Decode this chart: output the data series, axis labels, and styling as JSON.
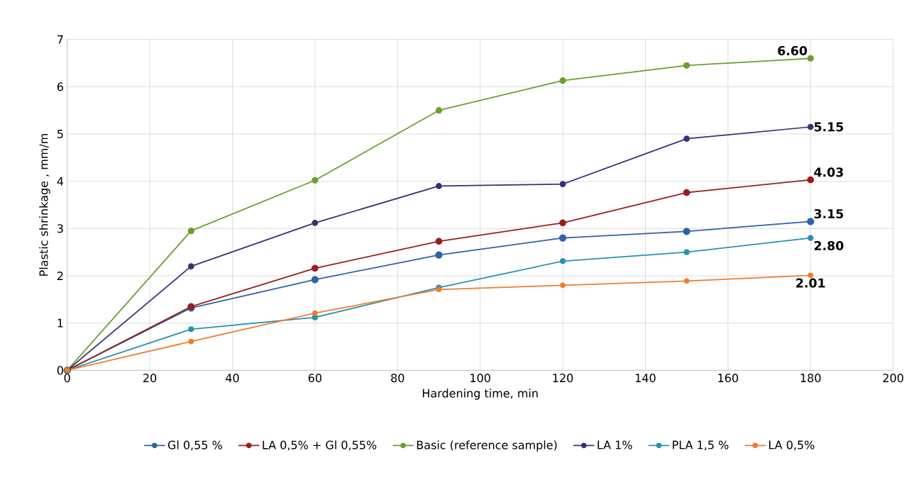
{
  "chart_data": {
    "type": "line",
    "xlabel": "Hardening time, min",
    "ylabel": "Plastic shrinkage , mm/m",
    "x": [
      0,
      30,
      60,
      90,
      120,
      150,
      180
    ],
    "xlim": [
      0,
      200
    ],
    "xticks": [
      0,
      20,
      40,
      60,
      80,
      100,
      120,
      140,
      160,
      180,
      200
    ],
    "ylim": [
      0,
      7
    ],
    "yticks": [
      0,
      1,
      2,
      3,
      4,
      5,
      6,
      7
    ],
    "grid": true,
    "legend": "bottom",
    "marker": "circle",
    "line_style": "solid",
    "series": [
      {
        "name": "Gl 0,55 %",
        "color": "#2e62a8",
        "values": [
          0,
          1.32,
          1.92,
          2.44,
          2.8,
          2.94,
          3.15
        ],
        "value_labels": [
          null,
          null,
          null,
          null,
          null,
          null,
          "3.15"
        ]
      },
      {
        "name": "LA 0,5% + Gl 0,55%",
        "color": "#9b1c1f",
        "values": [
          0,
          1.35,
          2.16,
          2.73,
          3.12,
          3.76,
          4.03
        ],
        "value_labels": [
          null,
          null,
          null,
          null,
          null,
          null,
          "4.03"
        ]
      },
      {
        "name": "Basic (reference sample)",
        "color": "#6a9e2f",
        "values": [
          0,
          2.95,
          4.02,
          5.5,
          6.13,
          6.45,
          6.6
        ],
        "value_labels": [
          null,
          null,
          null,
          null,
          null,
          null,
          "6.60"
        ]
      },
      {
        "name": "LA 1%",
        "color": "#3a2e7a",
        "values": [
          0,
          2.2,
          3.12,
          3.9,
          3.94,
          4.9,
          5.15
        ],
        "value_labels": [
          null,
          null,
          null,
          null,
          null,
          null,
          "5.15"
        ]
      },
      {
        "name": "PLA 1,5 %",
        "color": "#2592b0",
        "values": [
          0,
          0.87,
          1.12,
          1.75,
          2.31,
          2.5,
          2.8
        ],
        "value_labels": [
          null,
          null,
          null,
          null,
          null,
          null,
          "2.80"
        ]
      },
      {
        "name": "LA 0,5%",
        "color": "#f07c2a",
        "values": [
          0,
          0.61,
          1.21,
          1.71,
          1.8,
          1.89,
          2.01
        ],
        "value_labels": [
          null,
          null,
          null,
          null,
          null,
          null,
          "2.01"
        ]
      }
    ]
  }
}
